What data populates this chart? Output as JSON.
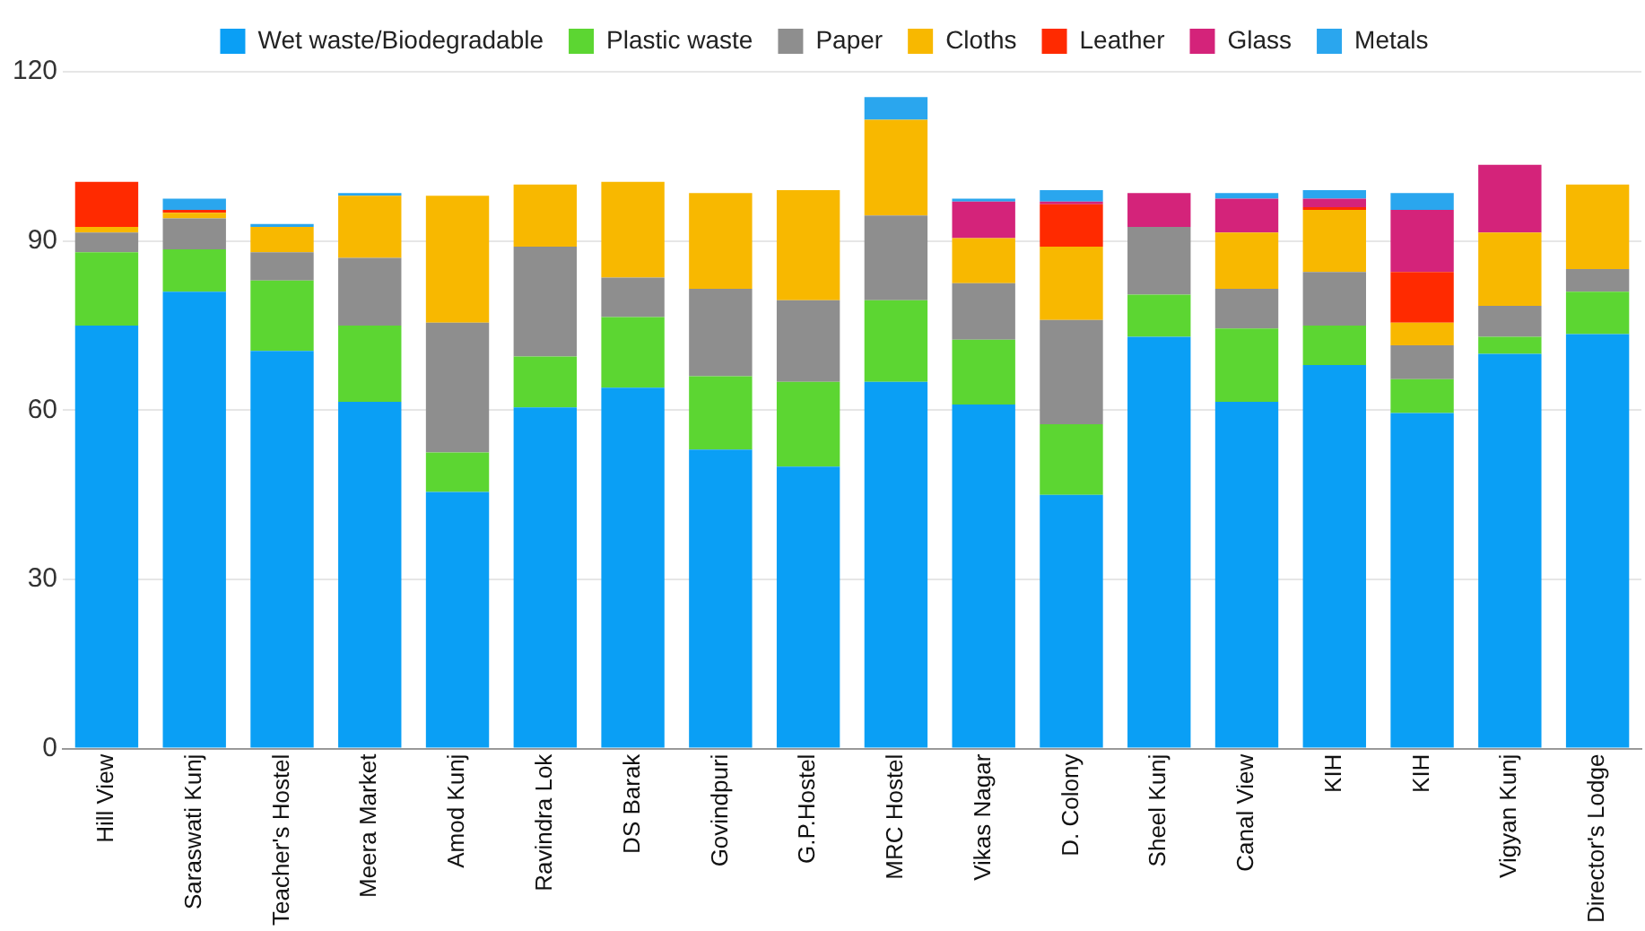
{
  "chart_data": {
    "type": "bar",
    "stacked": true,
    "categories": [
      "Hill View",
      "Saraswati Kunj",
      "Teacher's Hostel",
      "Meera Market",
      "Amod Kunj",
      "Ravindra Lok",
      "DS Barak",
      "Govindpuri",
      "G.P.Hostel",
      "MRC Hostel",
      "Vikas Nagar",
      "D. Colony",
      "Sheel Kunj",
      "Canal View",
      "KIH",
      "KIH",
      "Vigyan Kunj",
      "Director's Lodge"
    ],
    "series": [
      {
        "name": "Wet waste/Biodegradable",
        "color": "#0a9ff5",
        "values": [
          75,
          81,
          70.5,
          61.5,
          45.5,
          60.5,
          64,
          53,
          50,
          65,
          61,
          45,
          73,
          61.5,
          68,
          59.5,
          70,
          73.5
        ]
      },
      {
        "name": "Plastic waste",
        "color": "#5cd632",
        "values": [
          13,
          7.5,
          12.5,
          13.5,
          7,
          9,
          12.5,
          13,
          15,
          14.5,
          11.5,
          12.5,
          7.5,
          13,
          7,
          6,
          3,
          7.5
        ]
      },
      {
        "name": "Paper",
        "color": "#8e8e8e",
        "values": [
          3.5,
          5.5,
          5,
          12,
          23,
          19.5,
          7,
          15.5,
          14.5,
          15,
          10,
          18.5,
          12,
          7,
          9.5,
          6,
          5.5,
          4
        ]
      },
      {
        "name": "Cloths",
        "color": "#f8b800",
        "values": [
          1,
          1,
          4.5,
          11,
          22.5,
          11,
          17,
          17,
          19.5,
          17,
          8,
          13,
          0,
          10,
          11,
          4,
          13,
          15
        ]
      },
      {
        "name": "Leather",
        "color": "#ff2a00",
        "values": [
          8,
          0.5,
          0,
          0,
          0,
          0,
          0,
          0,
          0,
          0,
          0,
          7.5,
          0,
          0,
          0.5,
          9,
          0,
          0
        ]
      },
      {
        "name": "Glass",
        "color": "#d4237a",
        "values": [
          0,
          0,
          0,
          0,
          0,
          0,
          0,
          0,
          0,
          0,
          6.5,
          0.5,
          6,
          6,
          1.5,
          11,
          12,
          0
        ]
      },
      {
        "name": "Metals",
        "color": "#2aa6ee",
        "values": [
          0,
          2,
          0.5,
          0.5,
          0,
          0,
          0,
          0,
          0,
          4,
          0.5,
          2,
          0,
          1,
          1.5,
          3,
          0,
          0
        ]
      }
    ],
    "ylim": [
      0,
      120
    ],
    "yticks": [
      0,
      30,
      60,
      90,
      120
    ],
    "grid": "y",
    "legend": "top"
  }
}
